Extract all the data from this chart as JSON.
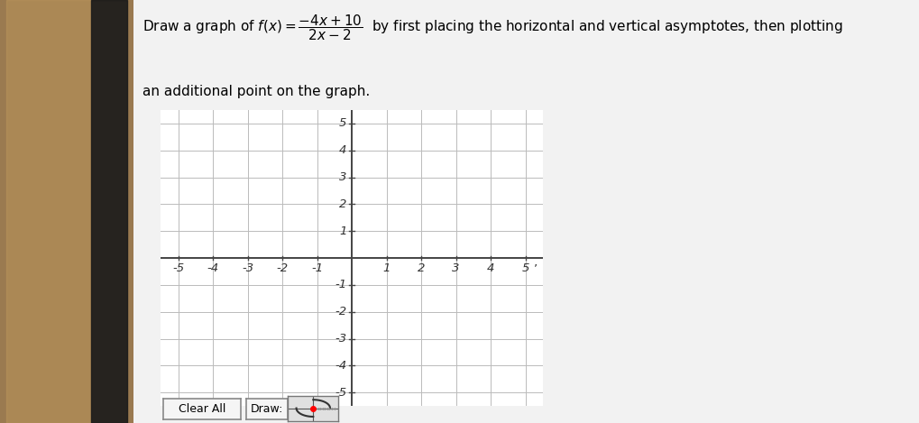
{
  "xlim": [
    -5.5,
    5.5
  ],
  "ylim": [
    -5.5,
    5.5
  ],
  "xticks": [
    -5,
    -4,
    -3,
    -2,
    -1,
    1,
    2,
    3,
    4,
    5
  ],
  "yticks": [
    -5,
    -4,
    -3,
    -2,
    -1,
    1,
    2,
    3,
    4,
    5
  ],
  "grid_color": "#bbbbbb",
  "axis_color": "#444444",
  "bg_left_color": "#c8a96e",
  "bg_right_color": "#f2f2f2",
  "panel_bg": "#ffffff",
  "tick_label_color": "#333333",
  "tick_fontsize": 9.5,
  "button_clear_text": "Clear All",
  "button_draw_text": "Draw:",
  "fig_width": 10.2,
  "fig_height": 4.69,
  "text_fontsize": 11
}
